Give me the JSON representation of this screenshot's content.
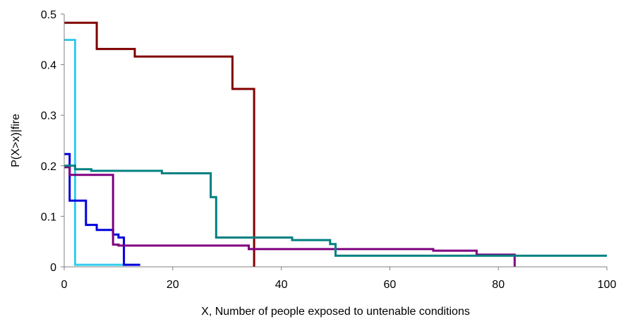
{
  "chart_data": {
    "type": "line",
    "title": "",
    "xlabel": "X, Number of people exposed to untenable conditions",
    "ylabel": "P(X>x)|fire",
    "xlim": [
      0,
      100
    ],
    "ylim": [
      0,
      0.5
    ],
    "x_ticks": [
      "0",
      "20",
      "40",
      "60",
      "80",
      "100"
    ],
    "y_ticks": [
      "0",
      "0.1",
      "0.2",
      "0.3",
      "0.4",
      "0.5"
    ],
    "grid": false,
    "legend": "none",
    "step": true,
    "series": [
      {
        "color": "#800000",
        "points": [
          [
            0,
            0.483
          ],
          [
            6,
            0.483
          ],
          [
            6,
            0.431
          ],
          [
            13,
            0.431
          ],
          [
            13,
            0.416
          ],
          [
            31,
            0.416
          ],
          [
            31,
            0.352
          ],
          [
            35,
            0.352
          ],
          [
            35,
            0.0
          ]
        ]
      },
      {
        "color": "#33CCEE",
        "points": [
          [
            0,
            0.449
          ],
          [
            2,
            0.449
          ],
          [
            2,
            0.004
          ],
          [
            12,
            0.004
          ]
        ]
      },
      {
        "color": "#0000DD",
        "points": [
          [
            0,
            0.223
          ],
          [
            1,
            0.223
          ],
          [
            1,
            0.131
          ],
          [
            4,
            0.131
          ],
          [
            4,
            0.083
          ],
          [
            6,
            0.083
          ],
          [
            6,
            0.073
          ],
          [
            9,
            0.073
          ],
          [
            9,
            0.064
          ],
          [
            10,
            0.064
          ],
          [
            10,
            0.058
          ],
          [
            11,
            0.058
          ],
          [
            11,
            0.004
          ],
          [
            14,
            0.004
          ]
        ]
      },
      {
        "color": "#800080",
        "points": [
          [
            0,
            0.197
          ],
          [
            1,
            0.197
          ],
          [
            1,
            0.182
          ],
          [
            9,
            0.182
          ],
          [
            9,
            0.044
          ],
          [
            10,
            0.044
          ],
          [
            10,
            0.042
          ],
          [
            34,
            0.042
          ],
          [
            34,
            0.035
          ],
          [
            68,
            0.035
          ],
          [
            68,
            0.032
          ],
          [
            76,
            0.032
          ],
          [
            76,
            0.024
          ],
          [
            83,
            0.024
          ],
          [
            83,
            0.0
          ]
        ]
      },
      {
        "color": "#008080",
        "points": [
          [
            0,
            0.2
          ],
          [
            2,
            0.2
          ],
          [
            2,
            0.193
          ],
          [
            5,
            0.193
          ],
          [
            5,
            0.19
          ],
          [
            18,
            0.19
          ],
          [
            18,
            0.185
          ],
          [
            27,
            0.185
          ],
          [
            27,
            0.138
          ],
          [
            28,
            0.138
          ],
          [
            28,
            0.058
          ],
          [
            42,
            0.058
          ],
          [
            42,
            0.053
          ],
          [
            49,
            0.053
          ],
          [
            49,
            0.045
          ],
          [
            50,
            0.045
          ],
          [
            50,
            0.022
          ],
          [
            100,
            0.022
          ]
        ]
      }
    ]
  }
}
